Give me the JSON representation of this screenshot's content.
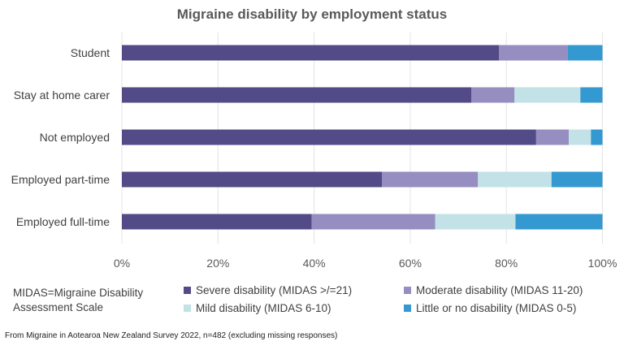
{
  "chart_data": {
    "type": "bar",
    "orientation": "horizontal",
    "stacked": true,
    "title": "Migraine disability by employment status",
    "categories": [
      "Student",
      "Stay at home carer",
      "Not employed",
      "Employed part-time",
      "Employed full-time"
    ],
    "series": [
      {
        "name": "Severe disability (MIDAS >/=21)",
        "color": "#534B87",
        "values": [
          78.5,
          72.7,
          86.2,
          54.1,
          39.5
        ]
      },
      {
        "name": "Moderate disability (MIDAS 11-20)",
        "color": "#968DC0",
        "values": [
          14.3,
          9.0,
          6.8,
          20.0,
          25.7
        ]
      },
      {
        "name": "Mild disability (MIDAS 6-10)",
        "color": "#C3E2E7",
        "values": [
          0,
          13.7,
          4.6,
          15.3,
          16.7
        ]
      },
      {
        "name": "Little or no disability (MIDAS 0-5)",
        "color": "#3399D0",
        "values": [
          7.2,
          4.6,
          2.4,
          10.6,
          18.1
        ]
      }
    ],
    "xlim": [
      0,
      100
    ],
    "xticks": [
      "0%",
      "20%",
      "40%",
      "60%",
      "80%",
      "100%"
    ],
    "grid": true,
    "legend_position": "bottom"
  },
  "note": "MIDAS=Migraine Disability Assessment Scale",
  "source": "From Migraine in Aotearoa New Zealand Survey 2022, n=482 (excluding missing responses)"
}
